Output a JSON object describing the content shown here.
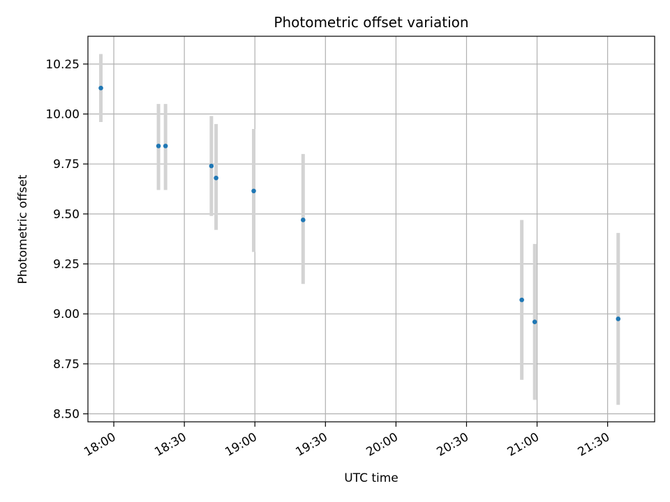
{
  "chart_data": {
    "type": "scatter",
    "title": "Photometric offset variation",
    "xlabel": "UTC time",
    "ylabel": "Photometric offset",
    "grid": true,
    "xlim": [
      "17:49",
      "21:50"
    ],
    "ylim": [
      8.46,
      10.389
    ],
    "x_ticks": [
      "18:00",
      "18:30",
      "19:00",
      "19:30",
      "20:00",
      "20:30",
      "21:00",
      "21:30"
    ],
    "y_ticks": [
      8.5,
      8.75,
      9.0,
      9.25,
      9.5,
      9.75,
      10.0,
      10.25
    ],
    "marker_color": "#1f77b4",
    "errorbar_color": "#d3d3d3",
    "points": [
      {
        "time": "17:54:30",
        "offset": 10.13,
        "lower": 9.96,
        "upper": 10.3
      },
      {
        "time": "18:19:00",
        "offset": 9.84,
        "lower": 9.62,
        "upper": 10.05
      },
      {
        "time": "18:22:00",
        "offset": 9.84,
        "lower": 9.62,
        "upper": 10.05
      },
      {
        "time": "18:41:30",
        "offset": 9.74,
        "lower": 9.49,
        "upper": 9.99
      },
      {
        "time": "18:43:30",
        "offset": 9.68,
        "lower": 9.42,
        "upper": 9.95
      },
      {
        "time": "18:59:30",
        "offset": 9.615,
        "lower": 9.31,
        "upper": 9.925
      },
      {
        "time": "19:20:30",
        "offset": 9.47,
        "lower": 9.15,
        "upper": 9.8
      },
      {
        "time": "20:53:30",
        "offset": 9.07,
        "lower": 8.67,
        "upper": 9.47
      },
      {
        "time": "20:59:00",
        "offset": 8.96,
        "lower": 8.57,
        "upper": 9.35
      },
      {
        "time": "21:34:30",
        "offset": 8.975,
        "lower": 8.545,
        "upper": 9.405
      }
    ]
  }
}
